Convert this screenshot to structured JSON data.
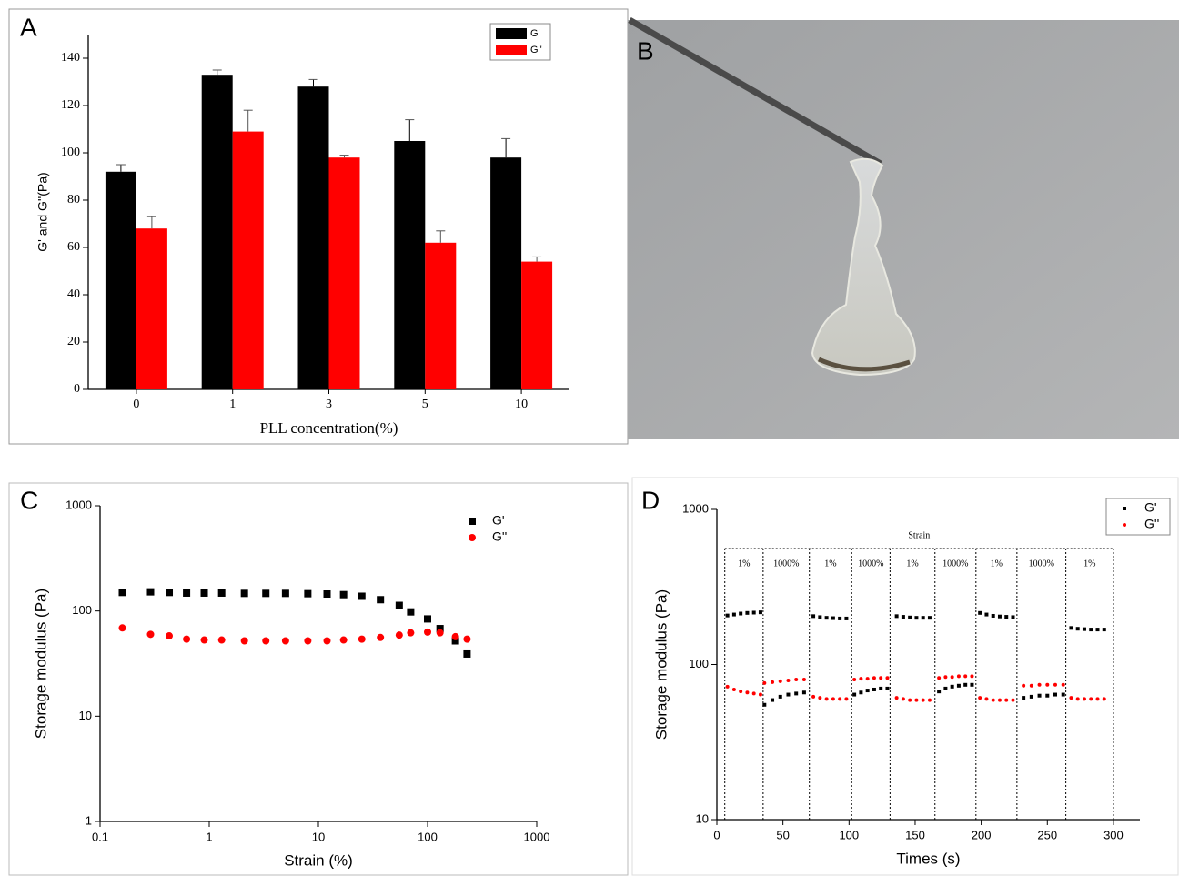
{
  "chart_data": [
    {
      "type": "bar",
      "panel_label": "A",
      "x_label": "PLL concentration(%)",
      "y_label": "G' and G''(Pa)",
      "categories": [
        "0",
        "1",
        "3",
        "5",
        "10"
      ],
      "series": [
        {
          "name": "G'",
          "color": "#000000",
          "values": [
            92,
            133,
            128,
            105,
            98
          ],
          "errors": [
            3,
            2,
            3,
            9,
            8
          ]
        },
        {
          "name": "G''",
          "color": "#ff0000",
          "values": [
            68,
            109,
            98,
            62,
            54
          ],
          "errors": [
            5,
            9,
            1,
            5,
            2
          ]
        }
      ],
      "ylim": [
        0,
        150
      ],
      "yticks": [
        0,
        20,
        40,
        60,
        80,
        100,
        120,
        140
      ],
      "legend": "upper right"
    },
    {
      "type": "scatter",
      "panel_label": "C",
      "x_label": "Strain (%)",
      "y_label": "Storage modulus (Pa)",
      "xscale": "log",
      "yscale": "log",
      "x": [
        0.16,
        0.29,
        0.43,
        0.62,
        0.9,
        1.3,
        2.1,
        3.3,
        5,
        8,
        12,
        17,
        25,
        37,
        55,
        70,
        100,
        130,
        180,
        230
      ],
      "series": [
        {
          "name": "G'",
          "color": "#000000",
          "marker": "square",
          "values": [
            150,
            152,
            150,
            148,
            148,
            148,
            147,
            147,
            147,
            146,
            145,
            143,
            138,
            128,
            113,
            98,
            84,
            68,
            52,
            39
          ]
        },
        {
          "name": "G''",
          "color": "#ff0000",
          "marker": "circle",
          "values": [
            69,
            60,
            58,
            54,
            53,
            53,
            52,
            52,
            52,
            52,
            52,
            53,
            54,
            56,
            59,
            62,
            63,
            62,
            57,
            54
          ]
        }
      ],
      "xlim": [
        0.1,
        1000
      ],
      "xticks": [
        0.1,
        1,
        10,
        100,
        1000
      ],
      "ylim": [
        1,
        1000
      ],
      "yticks": [
        1,
        10,
        100,
        1000
      ],
      "legend": "upper right"
    },
    {
      "type": "scatter",
      "panel_label": "D",
      "x_label": "Times (s)",
      "y_label": "Storage modulus (Pa)",
      "yscale": "log",
      "annotation": "Strain",
      "segments": [
        {
          "label": "1%",
          "start": 6,
          "end": 35
        },
        {
          "label": "1000%",
          "start": 35,
          "end": 70
        },
        {
          "label": "1%",
          "start": 70,
          "end": 102
        },
        {
          "label": "1000%",
          "start": 102,
          "end": 131
        },
        {
          "label": "1%",
          "start": 131,
          "end": 165
        },
        {
          "label": "1000%",
          "start": 165,
          "end": 196
        },
        {
          "label": "1%",
          "start": 196,
          "end": 227
        },
        {
          "label": "1000%",
          "start": 227,
          "end": 264
        },
        {
          "label": "1%",
          "start": 264,
          "end": 300
        }
      ],
      "x": [
        8,
        13,
        18,
        23,
        28,
        33,
        36,
        42,
        48,
        54,
        60,
        66,
        73,
        78,
        83,
        88,
        93,
        98,
        104,
        109,
        114,
        119,
        124,
        129,
        136,
        141,
        146,
        151,
        156,
        161,
        168,
        173,
        178,
        183,
        188,
        193,
        199,
        204,
        209,
        214,
        219,
        224,
        232,
        238,
        244,
        250,
        256,
        262,
        268,
        273,
        278,
        283,
        288,
        293
      ],
      "series": [
        {
          "name": "G'",
          "color": "#000000",
          "marker": "square",
          "values": [
            207,
            210,
            213,
            215,
            216,
            217,
            55,
            59,
            62,
            64,
            65,
            66,
            205,
            202,
            200,
            199,
            198,
            198,
            64,
            66,
            68,
            69,
            70,
            70,
            205,
            203,
            201,
            200,
            200,
            200,
            67,
            70,
            72,
            73,
            74,
            74,
            215,
            210,
            206,
            204,
            203,
            202,
            61,
            62,
            63,
            63,
            64,
            64,
            172,
            170,
            169,
            168,
            168,
            168
          ]
        },
        {
          "name": "G''",
          "color": "#ff0000",
          "marker": "circle",
          "values": [
            72,
            69,
            67,
            66,
            65,
            64,
            76,
            77,
            78,
            79,
            80,
            80,
            62,
            61,
            60,
            60,
            60,
            60,
            80,
            81,
            81,
            82,
            82,
            82,
            61,
            60,
            59,
            59,
            59,
            59,
            82,
            83,
            83,
            84,
            84,
            84,
            61,
            60,
            59,
            59,
            59,
            59,
            73,
            73,
            74,
            74,
            74,
            74,
            61,
            60,
            60,
            60,
            60,
            60
          ]
        }
      ],
      "xlim": [
        0,
        320
      ],
      "xticks": [
        0,
        50,
        100,
        150,
        200,
        250,
        300
      ],
      "ylim": [
        10,
        1000
      ],
      "yticks": [
        10,
        100,
        1000
      ],
      "legend": "upper right"
    }
  ],
  "photo": {
    "panel_label": "B"
  }
}
